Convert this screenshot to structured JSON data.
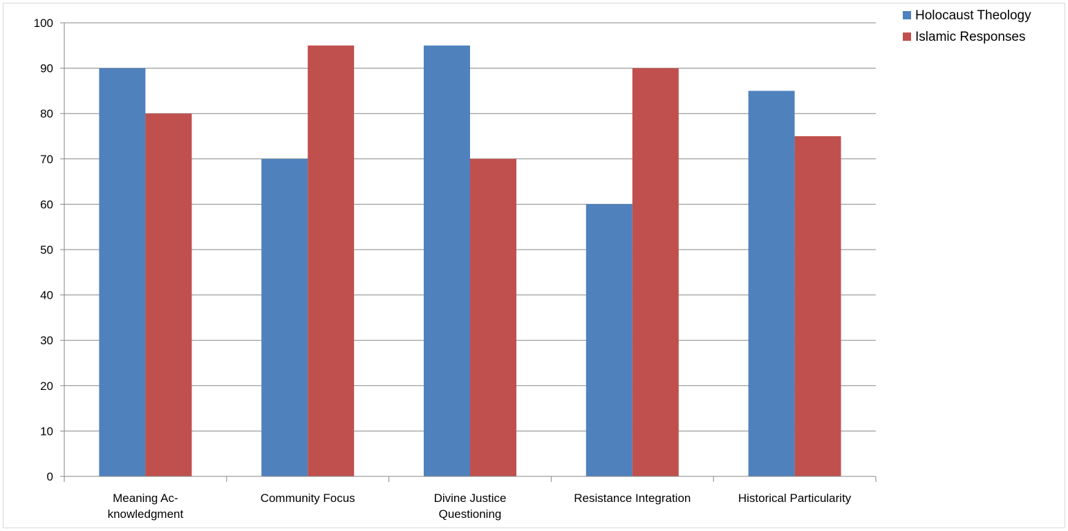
{
  "chart_data": {
    "type": "bar",
    "title": "",
    "xlabel": "",
    "ylabel": "",
    "categories": [
      [
        "Meaning Ac-",
        "knowledgment"
      ],
      [
        "Community Focus"
      ],
      [
        "Divine Justice",
        "Questioning"
      ],
      [
        "Resistance Integration"
      ],
      [
        "Historical Particularity"
      ]
    ],
    "series": [
      {
        "name": "Holocaust Theology",
        "color": "#4f81bd",
        "values": [
          90,
          70,
          95,
          60,
          85
        ]
      },
      {
        "name": "Islamic Responses",
        "color": "#c0504d",
        "values": [
          80,
          95,
          70,
          90,
          75
        ]
      }
    ],
    "ylim": [
      0,
      100
    ],
    "yticks": [
      0,
      10,
      20,
      30,
      40,
      50,
      60,
      70,
      80,
      90,
      100
    ],
    "grid": true,
    "legend_position": "top-right"
  }
}
